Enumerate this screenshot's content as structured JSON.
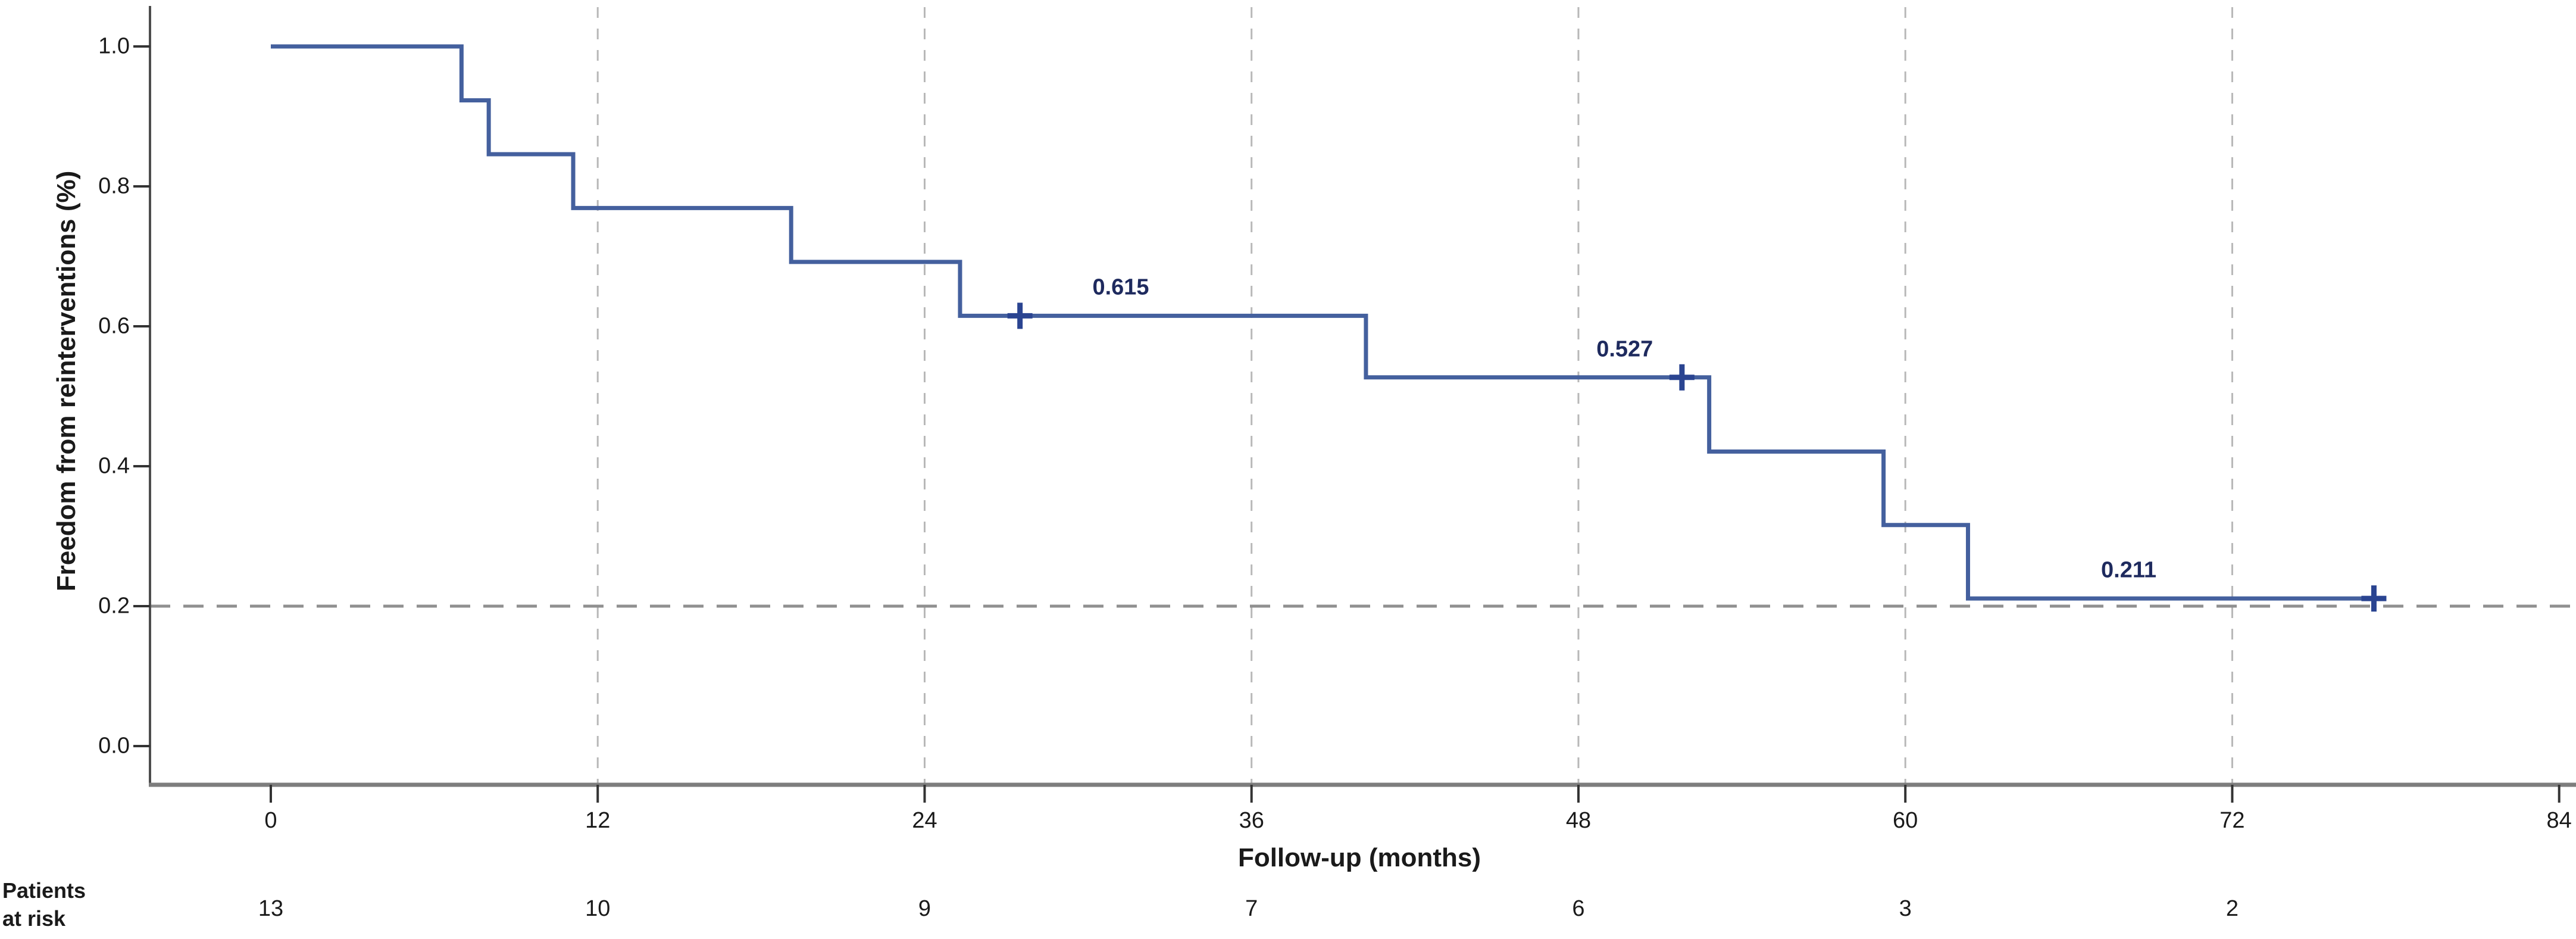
{
  "figure": {
    "background": "#ffffff"
  },
  "y_axis": {
    "title": "Freedom from reinterventions (%)",
    "ticks": [
      "1.0",
      "0.8",
      "0.6",
      "0.4",
      "0.2",
      "0.0"
    ],
    "tick_values": [
      1.0,
      0.8,
      0.6,
      0.4,
      0.2,
      0.0
    ]
  },
  "x_axis": {
    "title": "Follow-up (months)",
    "ticks": [
      "0",
      "12",
      "24",
      "36",
      "48",
      "60",
      "72",
      "84"
    ],
    "tick_values": [
      0,
      12,
      24,
      36,
      48,
      60,
      72,
      84
    ]
  },
  "at_risk": {
    "label_line1": "Patients",
    "label_line2": "at risk",
    "months": [
      0,
      12,
      24,
      36,
      48,
      60,
      72
    ],
    "values": [
      "13",
      "10",
      "9",
      "7",
      "6",
      "3",
      "2"
    ]
  },
  "annotations": [
    {
      "text": "0.615",
      "month": 31.2,
      "value": 0.615
    },
    {
      "text": "0.527",
      "month": 49.7,
      "value": 0.527
    },
    {
      "text": "0.211",
      "month": 68.2,
      "value": 0.211
    }
  ],
  "chart_data": {
    "type": "line",
    "subtype": "kaplan-meier-step",
    "title": "",
    "xlabel": "Follow-up (months)",
    "ylabel": "Freedom from reinterventions (%)",
    "xlim": [
      0,
      84
    ],
    "ylim": [
      0.0,
      1.0
    ],
    "x_ticks": [
      0,
      12,
      24,
      36,
      48,
      60,
      72,
      84
    ],
    "y_ticks": [
      0.0,
      0.2,
      0.4,
      0.6,
      0.8,
      1.0
    ],
    "grid": "vertical dashed gridlines at each x tick 12-72",
    "gridline_months": [
      12,
      24,
      36,
      48,
      60,
      72
    ],
    "reference_line_y": 0.2,
    "legend": "none",
    "series": [
      {
        "name": "Freedom from reinterventions",
        "start": {
          "month": 0,
          "survival": 1.0
        },
        "steps": [
          {
            "month": 7.0,
            "survival": 0.923
          },
          {
            "month": 8.0,
            "survival": 0.846
          },
          {
            "month": 11.1,
            "survival": 0.769
          },
          {
            "month": 19.1,
            "survival": 0.692
          },
          {
            "month": 25.3,
            "survival": 0.615
          },
          {
            "month": 40.2,
            "survival": 0.527
          },
          {
            "month": 52.8,
            "survival": 0.421
          },
          {
            "month": 59.2,
            "survival": 0.316
          },
          {
            "month": 62.3,
            "survival": 0.211
          }
        ],
        "end_month": 77.2,
        "censor_marks": [
          {
            "month": 27.5,
            "survival": 0.615
          },
          {
            "month": 51.8,
            "survival": 0.527
          },
          {
            "month": 77.2,
            "survival": 0.211
          }
        ],
        "labeled_survival_values": [
          0.615,
          0.527,
          0.211
        ]
      }
    ],
    "patients_at_risk": {
      "months": [
        0,
        12,
        24,
        36,
        48,
        60,
        72
      ],
      "counts": [
        13,
        10,
        9,
        7,
        6,
        3,
        2
      ]
    }
  },
  "colors": {
    "curve": "#44609e",
    "censor": "#2a4491",
    "annotation": "#1e2a5e",
    "gridline": "#b8b8b8",
    "reference_line": "#909090",
    "x_axis_line": "#7d7d7d",
    "y_axis_line": "#4d4d4d",
    "tick_mark": "#333333",
    "text": "#1a1a1a"
  }
}
